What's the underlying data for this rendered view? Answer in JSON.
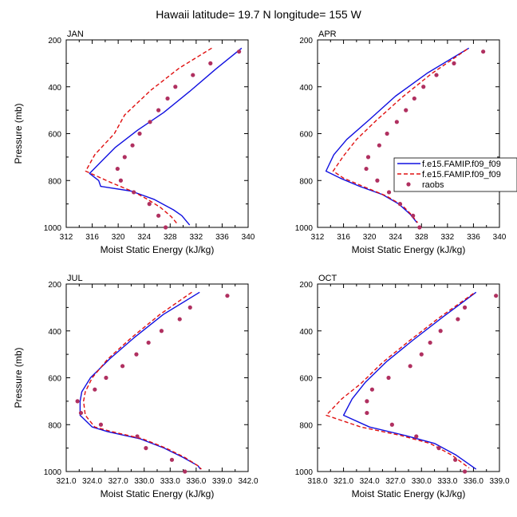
{
  "figure": {
    "title": "Hawaii  latitude= 19.7 N longitude= 155 W"
  },
  "colors": {
    "model_1": "#1010e0",
    "model_2": "#e01010",
    "raobs": "#b03060"
  },
  "legend": {
    "entries": [
      "f.e15.FAMIP.f09_f09",
      "f.e15.FAMIP.f09_f09",
      "raobs"
    ],
    "panel": "APR"
  },
  "chart_data": [
    {
      "type": "line",
      "title": "JAN",
      "xlabel": "Moist Static Energy (kJ/kg)",
      "ylabel": "Pressure (mb)",
      "xlim": [
        312,
        340
      ],
      "ylim": [
        1000,
        200
      ],
      "y_inverted": true,
      "xticks": [
        312,
        316,
        320,
        324,
        328,
        332,
        336,
        340
      ],
      "xtick_labels": [
        "312",
        "316",
        "320",
        "324",
        "328",
        "332",
        "336",
        "340"
      ],
      "yticks": [
        200,
        400,
        600,
        800,
        1000
      ],
      "ytick_labels": [
        "200",
        "400",
        "600",
        "800",
        "1000"
      ],
      "series": [
        {
          "name": "f.e15.FAMIP.f09_f09",
          "style": "solid",
          "points": [
            [
              339.0,
              235
            ],
            [
              335.0,
              325
            ],
            [
              331.0,
              420
            ],
            [
              327.0,
              510
            ],
            [
              323.0,
              585
            ],
            [
              319.5,
              660
            ],
            [
              317.0,
              730
            ],
            [
              315.6,
              770
            ],
            [
              317.0,
              800
            ],
            [
              317.3,
              825
            ],
            [
              322.0,
              845
            ],
            [
              325.5,
              880
            ],
            [
              328.5,
              925
            ],
            [
              329.8,
              950
            ],
            [
              331.0,
              990
            ]
          ]
        },
        {
          "name": "f.e15.FAMIP.f09_f09",
          "style": "dashed",
          "points": [
            [
              334.4,
              235
            ],
            [
              329.4,
              320
            ],
            [
              325.0,
              415
            ],
            [
              321.0,
              520
            ],
            [
              319.4,
              600
            ],
            [
              316.4,
              690
            ],
            [
              315.0,
              760
            ],
            [
              319.0,
              810
            ],
            [
              322.5,
              850
            ],
            [
              324.5,
              880
            ],
            [
              326.5,
              915
            ],
            [
              328.2,
              955
            ],
            [
              329.1,
              985
            ]
          ]
        },
        {
          "name": "raobs",
          "style": "markers",
          "points": [
            [
              338.6,
              250
            ],
            [
              334.2,
              300
            ],
            [
              331.5,
              350
            ],
            [
              328.8,
              400
            ],
            [
              327.6,
              450
            ],
            [
              326.2,
              500
            ],
            [
              324.9,
              550
            ],
            [
              323.3,
              600
            ],
            [
              322.2,
              650
            ],
            [
              321.0,
              700
            ],
            [
              319.9,
              750
            ],
            [
              320.4,
              800
            ],
            [
              322.4,
              850
            ],
            [
              324.8,
              900
            ],
            [
              326.2,
              950
            ],
            [
              327.3,
              1000
            ]
          ]
        }
      ]
    },
    {
      "type": "line",
      "title": "APR",
      "xlabel": "Moist Static Energy (kJ/kg)",
      "ylabel": "",
      "xlim": [
        312,
        340
      ],
      "ylim": [
        1000,
        200
      ],
      "y_inverted": true,
      "xticks": [
        312,
        316,
        320,
        324,
        328,
        332,
        336,
        340
      ],
      "xtick_labels": [
        "312",
        "316",
        "320",
        "324",
        "328",
        "332",
        "336",
        "340"
      ],
      "yticks": [
        200,
        400,
        600,
        800,
        1000
      ],
      "ytick_labels": [
        "200",
        "400",
        "600",
        "800",
        "1000"
      ],
      "series": [
        {
          "name": "f.e15.FAMIP.f09_f09",
          "style": "solid",
          "points": [
            [
              335.3,
              235
            ],
            [
              329.0,
              340
            ],
            [
              324.0,
              440
            ],
            [
              320.0,
              540
            ],
            [
              316.5,
              625
            ],
            [
              314.5,
              690
            ],
            [
              313.3,
              760
            ],
            [
              315.5,
              790
            ],
            [
              318.5,
              825
            ],
            [
              322.0,
              860
            ],
            [
              324.5,
              900
            ],
            [
              326.3,
              945
            ],
            [
              327.3,
              980
            ]
          ]
        },
        {
          "name": "f.e15.FAMIP.f09_f09",
          "style": "dashed",
          "points": [
            [
              335.0,
              240
            ],
            [
              329.5,
              345
            ],
            [
              325.0,
              445
            ],
            [
              321.0,
              545
            ],
            [
              318.0,
              625
            ],
            [
              316.0,
              695
            ],
            [
              314.4,
              760
            ],
            [
              316.0,
              790
            ],
            [
              319.0,
              825
            ],
            [
              322.5,
              865
            ],
            [
              325.0,
              905
            ],
            [
              326.4,
              945
            ],
            [
              327.4,
              980
            ]
          ]
        },
        {
          "name": "raobs",
          "style": "markers",
          "points": [
            [
              337.5,
              250
            ],
            [
              333.0,
              300
            ],
            [
              330.3,
              350
            ],
            [
              328.3,
              400
            ],
            [
              326.9,
              450
            ],
            [
              325.6,
              500
            ],
            [
              324.2,
              550
            ],
            [
              322.7,
              600
            ],
            [
              321.5,
              650
            ],
            [
              319.8,
              700
            ],
            [
              319.5,
              750
            ],
            [
              321.2,
              800
            ],
            [
              323.0,
              850
            ],
            [
              324.7,
              900
            ],
            [
              326.7,
              950
            ],
            [
              327.7,
              1000
            ]
          ]
        }
      ]
    },
    {
      "type": "line",
      "title": "JUL",
      "xlabel": "Moist Static Energy (kJ/kg)",
      "ylabel": "Pressure (mb)",
      "xlim": [
        321,
        342
      ],
      "ylim": [
        1000,
        200
      ],
      "y_inverted": true,
      "xticks": [
        321,
        324,
        327,
        330,
        333,
        336,
        339,
        342
      ],
      "xtick_labels": [
        "321.0",
        "324.0",
        "327.0",
        "330.0",
        "333.0",
        "336.0",
        "339.0",
        "342.0"
      ],
      "yticks": [
        200,
        400,
        600,
        800,
        1000
      ],
      "ytick_labels": [
        "200",
        "400",
        "600",
        "800",
        "1000"
      ],
      "series": [
        {
          "name": "f.e15.FAMIP.f09_f09",
          "style": "solid",
          "points": [
            [
              336.4,
              235
            ],
            [
              332.2,
              330
            ],
            [
              328.8,
              430
            ],
            [
              326.0,
              520
            ],
            [
              323.8,
              600
            ],
            [
              322.8,
              660
            ],
            [
              322.6,
              700
            ],
            [
              322.6,
              760
            ],
            [
              324.0,
              810
            ],
            [
              325.8,
              830
            ],
            [
              329.5,
              860
            ],
            [
              332.3,
              900
            ],
            [
              334.5,
              940
            ],
            [
              336.2,
              975
            ],
            [
              336.5,
              990
            ]
          ]
        },
        {
          "name": "f.e15.FAMIP.f09_f09",
          "style": "dashed",
          "points": [
            [
              335.5,
              235
            ],
            [
              331.8,
              330
            ],
            [
              328.5,
              430
            ],
            [
              325.8,
              520
            ],
            [
              324.0,
              600
            ],
            [
              323.2,
              660
            ],
            [
              323.0,
              700
            ],
            [
              323.2,
              760
            ],
            [
              324.3,
              810
            ],
            [
              326.3,
              830
            ],
            [
              329.8,
              860
            ],
            [
              332.5,
              900
            ],
            [
              334.7,
              940
            ],
            [
              336.2,
              975
            ],
            [
              336.6,
              990
            ]
          ]
        },
        {
          "name": "raobs",
          "style": "markers",
          "points": [
            [
              339.6,
              250
            ],
            [
              335.3,
              300
            ],
            [
              334.1,
              350
            ],
            [
              332.0,
              400
            ],
            [
              330.5,
              450
            ],
            [
              329.1,
              500
            ],
            [
              327.5,
              550
            ],
            [
              325.6,
              600
            ],
            [
              324.3,
              650
            ],
            [
              322.3,
              700
            ],
            [
              322.7,
              750
            ],
            [
              325.0,
              800
            ],
            [
              329.2,
              850
            ],
            [
              330.2,
              900
            ],
            [
              333.2,
              950
            ],
            [
              334.7,
              1000
            ]
          ]
        }
      ]
    },
    {
      "type": "line",
      "title": "OCT",
      "xlabel": "Moist Static Energy (kJ/kg)",
      "ylabel": "",
      "xlim": [
        318,
        339
      ],
      "ylim": [
        1000,
        200
      ],
      "y_inverted": true,
      "xticks": [
        318,
        321,
        324,
        327,
        330,
        333,
        336,
        339
      ],
      "xtick_labels": [
        "318.0",
        "321.0",
        "324.0",
        "327.0",
        "330.0",
        "333.0",
        "336.0",
        "339.0"
      ],
      "yticks": [
        200,
        400,
        600,
        800,
        1000
      ],
      "ytick_labels": [
        "200",
        "400",
        "600",
        "800",
        "1000"
      ],
      "series": [
        {
          "name": "f.e15.FAMIP.f09_f09",
          "style": "solid",
          "points": [
            [
              336.3,
              235
            ],
            [
              332.5,
              340
            ],
            [
              329.0,
              440
            ],
            [
              326.0,
              530
            ],
            [
              323.5,
              620
            ],
            [
              322.0,
              690
            ],
            [
              321.0,
              760
            ],
            [
              324.0,
              810
            ],
            [
              328.0,
              845
            ],
            [
              331.5,
              880
            ],
            [
              334.0,
              930
            ],
            [
              336.3,
              990
            ]
          ]
        },
        {
          "name": "f.e15.FAMIP.f09_f09",
          "style": "dashed",
          "points": [
            [
              336.0,
              240
            ],
            [
              332.0,
              345
            ],
            [
              328.5,
              445
            ],
            [
              325.5,
              535
            ],
            [
              323.0,
              625
            ],
            [
              320.8,
              690
            ],
            [
              319.0,
              760
            ],
            [
              323.0,
              810
            ],
            [
              327.5,
              845
            ],
            [
              331.0,
              880
            ],
            [
              333.5,
              930
            ],
            [
              335.5,
              985
            ]
          ]
        },
        {
          "name": "raobs",
          "style": "markers",
          "points": [
            [
              338.6,
              250
            ],
            [
              335.0,
              300
            ],
            [
              334.2,
              350
            ],
            [
              332.2,
              400
            ],
            [
              331.0,
              450
            ],
            [
              330.0,
              500
            ],
            [
              328.7,
              550
            ],
            [
              326.2,
              600
            ],
            [
              324.3,
              650
            ],
            [
              323.7,
              700
            ],
            [
              323.7,
              750
            ],
            [
              326.6,
              800
            ],
            [
              329.4,
              850
            ],
            [
              332.0,
              900
            ],
            [
              333.9,
              950
            ],
            [
              335.0,
              1000
            ]
          ]
        }
      ]
    }
  ]
}
